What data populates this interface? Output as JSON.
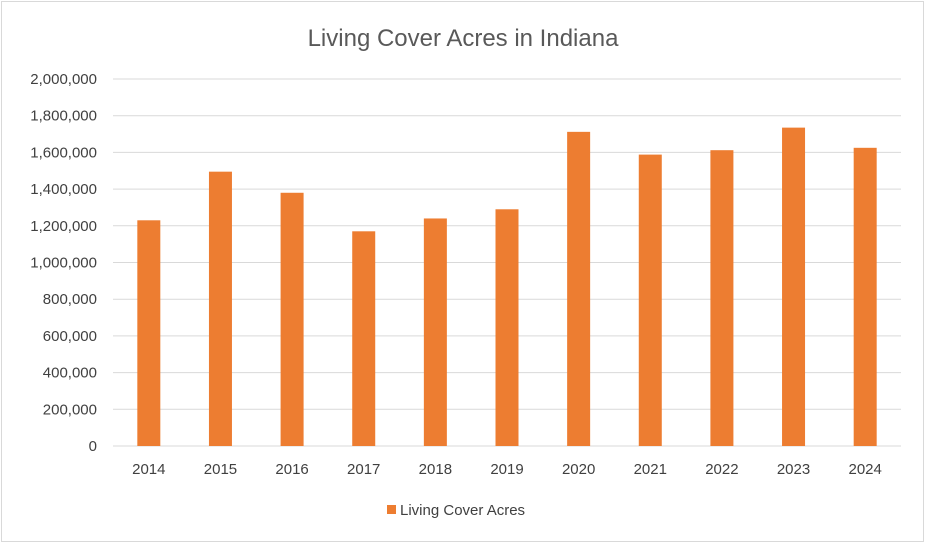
{
  "chart_data": {
    "type": "bar",
    "title": "Living Cover Acres in Indiana",
    "xlabel": "",
    "ylabel": "",
    "categories": [
      "2014",
      "2015",
      "2016",
      "2017",
      "2018",
      "2019",
      "2020",
      "2021",
      "2022",
      "2023",
      "2024"
    ],
    "series": [
      {
        "name": "Living Cover Acres",
        "color": "#ED7D31",
        "values": [
          1230000,
          1495000,
          1380000,
          1170000,
          1240000,
          1290000,
          1712000,
          1588000,
          1612000,
          1735000,
          1625000
        ]
      }
    ],
    "ylim": [
      0,
      2000000
    ],
    "yticks": [
      0,
      200000,
      400000,
      600000,
      800000,
      1000000,
      1200000,
      1400000,
      1600000,
      1800000,
      2000000
    ],
    "ytick_labels": [
      "0",
      "200,000",
      "400,000",
      "600,000",
      "800,000",
      "1,000,000",
      "1,200,000",
      "1,400,000",
      "1,600,000",
      "1,800,000",
      "2,000,000"
    ],
    "grid": true,
    "legend_position": "bottom"
  }
}
